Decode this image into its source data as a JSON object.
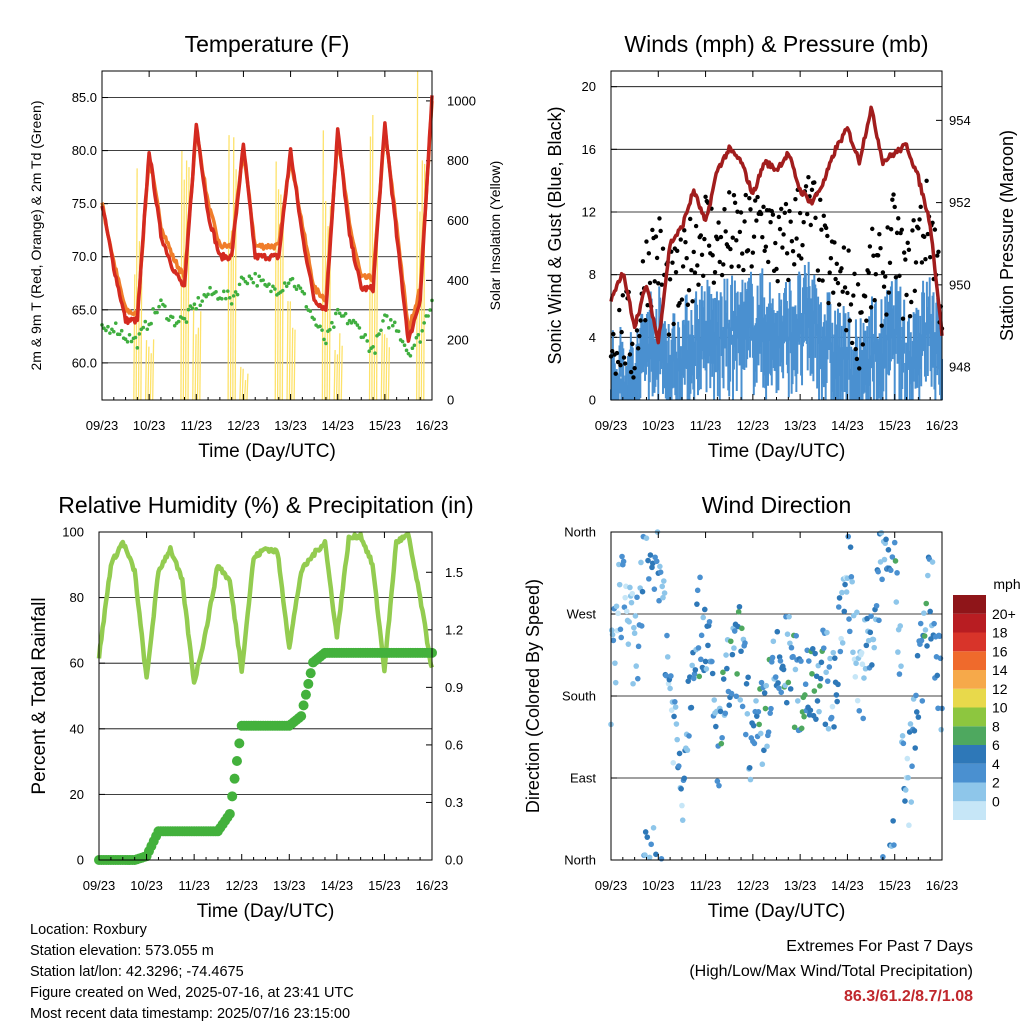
{
  "x_ticks": [
    "09/23",
    "10/23",
    "11/23",
    "12/23",
    "13/23",
    "14/23",
    "15/23",
    "16/23"
  ],
  "colors": {
    "red": "#d42a20",
    "orange": "#f07d2a",
    "green": "#3fae3f",
    "yellow": "#fde26a",
    "gust": "#000000",
    "wind": "#4a90d0",
    "pressure": "#a11d1d",
    "rh": "#93cc50",
    "precip": "#43b13c",
    "extreme": "#c0282d"
  },
  "panels": {
    "temperature": {
      "title": "Temperature (F)",
      "xlabel": "Time (Day/UTC)",
      "ylabel_left": "2m & 9m T (Red, Orange) & 2m Td (Green)",
      "ylabel_right": "Solar Insolation (Yellow)",
      "left_ticks": [
        "60.0",
        "65.0",
        "70.0",
        "75.0",
        "80.0",
        "85.0"
      ],
      "right_ticks": [
        "0",
        "200",
        "400",
        "600",
        "800",
        "1000"
      ]
    },
    "winds": {
      "title": "Winds (mph) & Pressure (mb)",
      "xlabel": "Time (Day/UTC)",
      "ylabel_left": "Sonic Wind & Gust (Blue, Black)",
      "ylabel_right": "Station Pressure (Maroon)",
      "left_ticks": [
        "0",
        "4",
        "8",
        "12",
        "16",
        "20"
      ],
      "right_ticks": [
        "948",
        "950",
        "952",
        "954"
      ]
    },
    "humidity": {
      "title": "Relative Humidity (%) & Precipitation (in)",
      "xlabel": "Time (Day/UTC)",
      "ylabel_left": "Percent & Total Rainfall",
      "left_ticks": [
        "0",
        "20",
        "40",
        "60",
        "80",
        "100"
      ],
      "right_ticks": [
        "0.0",
        "0.3",
        "0.6",
        "0.9",
        "1.2",
        "1.5"
      ]
    },
    "direction": {
      "title": "Wind Direction",
      "xlabel": "Time (Day/UTC)",
      "ylabel_left": "Direction (Colored By Speed)",
      "left_ticks": [
        "North",
        "East",
        "South",
        "West",
        "North"
      ],
      "legend_title": "mph",
      "legend_labels": [
        "0",
        "2",
        "4",
        "6",
        "8",
        "10",
        "12",
        "14",
        "16",
        "18",
        "20+"
      ],
      "legend_colors": [
        "#c6e6f7",
        "#8ec6ea",
        "#4a90d0",
        "#2e78b8",
        "#4ea85f",
        "#8dc63f",
        "#e8d94b",
        "#f6a94a",
        "#ef6a2c",
        "#d8342a",
        "#b81d22",
        "#8f1519"
      ]
    }
  },
  "chart_data": [
    {
      "type": "line",
      "title": "Temperature (F)",
      "xlabel": "Time (Day/UTC)",
      "ylabel": "2m & 9m T (Red, Orange) & 2m Td (Green)",
      "ylabel_right": "Solar Insolation (Yellow)",
      "ylim": [
        56.5,
        87.5
      ],
      "ylim_right": [
        0,
        1100
      ],
      "x": [
        9.0,
        9.25,
        9.5,
        9.75,
        10.0,
        10.25,
        10.5,
        10.75,
        11.0,
        11.25,
        11.5,
        11.75,
        12.0,
        12.25,
        12.5,
        12.75,
        13.0,
        13.25,
        13.5,
        13.75,
        14.0,
        14.25,
        14.5,
        14.75,
        15.0,
        15.25,
        15.5,
        15.75,
        16.0
      ],
      "series": [
        {
          "name": "2m T",
          "values": [
            75.0,
            69.0,
            64.0,
            64.0,
            80.0,
            72.0,
            69.0,
            67.0,
            82.5,
            74.0,
            70.0,
            70.0,
            80.5,
            70.0,
            70.0,
            70.0,
            80.0,
            72.0,
            66.0,
            65.0,
            82.0,
            72.0,
            67.0,
            67.0,
            82.5,
            72.0,
            62.0,
            66.0,
            85.0
          ]
        },
        {
          "name": "9m T",
          "values": [
            75.0,
            69.5,
            65.0,
            64.5,
            79.5,
            73.0,
            70.0,
            68.0,
            82.0,
            75.0,
            71.0,
            71.0,
            80.0,
            71.0,
            71.0,
            71.0,
            79.5,
            73.0,
            67.0,
            66.0,
            81.5,
            73.0,
            68.0,
            68.0,
            82.0,
            73.0,
            63.0,
            67.0,
            84.5
          ]
        },
        {
          "name": "2m Td",
          "values": [
            63.0,
            63.5,
            62.5,
            62.0,
            64.0,
            65.5,
            64.0,
            64.0,
            65.5,
            66.5,
            66.5,
            66.0,
            68.0,
            68.0,
            67.0,
            67.0,
            68.0,
            66.5,
            64.0,
            62.0,
            64.5,
            64.0,
            63.0,
            61.0,
            64.0,
            63.5,
            61.0,
            62.5,
            66.0
          ]
        },
        {
          "name": "Solar Insolation",
          "axis": "right",
          "values": [
            0,
            0,
            0,
            700,
            200,
            0,
            0,
            820,
            300,
            0,
            0,
            900,
            100,
            0,
            0,
            720,
            300,
            0,
            0,
            850,
            200,
            0,
            0,
            880,
            250,
            0,
            0,
            1000,
            0
          ]
        }
      ]
    },
    {
      "type": "line",
      "title": "Winds (mph) & Pressure (mb)",
      "xlabel": "Time (Day/UTC)",
      "ylabel": "Sonic Wind & Gust (Blue, Black)",
      "ylabel_right": "Station Pressure (Maroon)",
      "ylim": [
        0,
        21
      ],
      "ylim_right": [
        947.2,
        955.2
      ],
      "x": [
        9.0,
        9.25,
        9.5,
        9.75,
        10.0,
        10.25,
        10.5,
        10.75,
        11.0,
        11.25,
        11.5,
        11.75,
        12.0,
        12.25,
        12.5,
        12.75,
        13.0,
        13.25,
        13.5,
        13.75,
        14.0,
        14.25,
        14.5,
        14.75,
        15.0,
        15.25,
        15.5,
        15.75,
        16.0
      ],
      "series": [
        {
          "name": "Gust",
          "values": [
            4.0,
            4.5,
            3.5,
            8.5,
            9.5,
            6.5,
            7.5,
            9.5,
            11.0,
            9.5,
            10.5,
            10.0,
            10.5,
            11.5,
            9.5,
            10.0,
            11.5,
            12.0,
            9.0,
            7.5,
            7.0,
            5.0,
            8.0,
            7.5,
            10.5,
            7.0,
            10.5,
            11.5,
            6.5
          ]
        },
        {
          "name": "Sonic Wind",
          "values": [
            2.5,
            3.0,
            2.5,
            5.5,
            5.5,
            4.0,
            4.5,
            5.5,
            6.0,
            5.5,
            6.0,
            6.0,
            6.5,
            6.5,
            5.5,
            6.0,
            6.5,
            7.0,
            5.5,
            4.5,
            4.0,
            3.0,
            5.0,
            4.5,
            6.5,
            4.0,
            5.5,
            6.5,
            4.0
          ]
        },
        {
          "name": "Station Pressure",
          "axis": "right",
          "values": [
            949.6,
            950.3,
            949.0,
            950.0,
            948.6,
            951.0,
            951.4,
            952.3,
            951.5,
            952.8,
            953.3,
            953.0,
            952.2,
            953.0,
            952.8,
            953.2,
            952.3,
            952.0,
            952.5,
            953.3,
            953.8,
            953.0,
            954.3,
            953.0,
            953.2,
            953.4,
            952.6,
            951.5,
            948.8
          ]
        }
      ]
    },
    {
      "type": "line",
      "title": "Relative Humidity (%) & Precipitation (in)",
      "xlabel": "Time (Day/UTC)",
      "ylabel": "Percent & Total Rainfall",
      "ylim": [
        0,
        100
      ],
      "ylim_right": [
        0,
        1.71
      ],
      "x": [
        9.0,
        9.25,
        9.5,
        9.75,
        10.0,
        10.25,
        10.5,
        10.75,
        11.0,
        11.25,
        11.5,
        11.75,
        12.0,
        12.25,
        12.5,
        12.75,
        13.0,
        13.25,
        13.5,
        13.75,
        14.0,
        14.25,
        14.5,
        14.75,
        15.0,
        15.25,
        15.5,
        15.75,
        16.0
      ],
      "series": [
        {
          "name": "Relative Humidity",
          "values": [
            62,
            90,
            97,
            88,
            55,
            88,
            95,
            85,
            54,
            70,
            90,
            85,
            58,
            92,
            95,
            94,
            65,
            88,
            93,
            97,
            68,
            98,
            99,
            90,
            58,
            97,
            99,
            80,
            58
          ]
        },
        {
          "name": "Total Precipitation",
          "axis": "right",
          "values": [
            0.0,
            0.0,
            0.0,
            0.0,
            0.02,
            0.15,
            0.15,
            0.15,
            0.15,
            0.15,
            0.15,
            0.24,
            0.7,
            0.7,
            0.7,
            0.7,
            0.7,
            0.75,
            1.03,
            1.08,
            1.08,
            1.08,
            1.08,
            1.08,
            1.08,
            1.08,
            1.08,
            1.08,
            1.08
          ]
        }
      ]
    },
    {
      "type": "scatter",
      "title": "Wind Direction",
      "xlabel": "Time (Day/UTC)",
      "ylabel": "Direction (Colored By Speed)",
      "ylim": [
        0,
        360
      ],
      "y_ticks": {
        "0": "North",
        "90": "East",
        "180": "South",
        "270": "West",
        "360": "North"
      },
      "x": [
        9.0,
        9.25,
        9.5,
        9.75,
        10.0,
        10.25,
        10.5,
        10.75,
        11.0,
        11.25,
        11.5,
        11.75,
        12.0,
        12.25,
        12.5,
        12.75,
        13.0,
        13.25,
        13.5,
        13.75,
        14.0,
        14.25,
        14.5,
        14.75,
        15.0,
        15.25,
        15.5,
        15.75,
        16.0
      ],
      "series": [
        {
          "name": "Direction",
          "values": [
            200,
            310,
            220,
            345,
            350,
            190,
            80,
            250,
            260,
            120,
            200,
            230,
            110,
            160,
            200,
            220,
            180,
            210,
            200,
            190,
            330,
            200,
            230,
            340,
            350,
            60,
            190,
            300,
            180
          ]
        }
      ]
    }
  ],
  "info": {
    "location": "Location: Roxbury",
    "elevation": "Station elevation: 573.055 m",
    "latlon": "Station lat/lon: 42.3296; -74.4675",
    "created": "Figure created on Wed, 2025-07-16, at 23:41 UTC",
    "timestamp": "Most recent data timestamp: 2025/07/16 23:15:00"
  },
  "extremes": {
    "title": "Extremes For Past 7 Days",
    "subtitle": "(High/Low/Max Wind/Total Precipitation)",
    "values": "86.3/61.2/8.7/1.08"
  }
}
